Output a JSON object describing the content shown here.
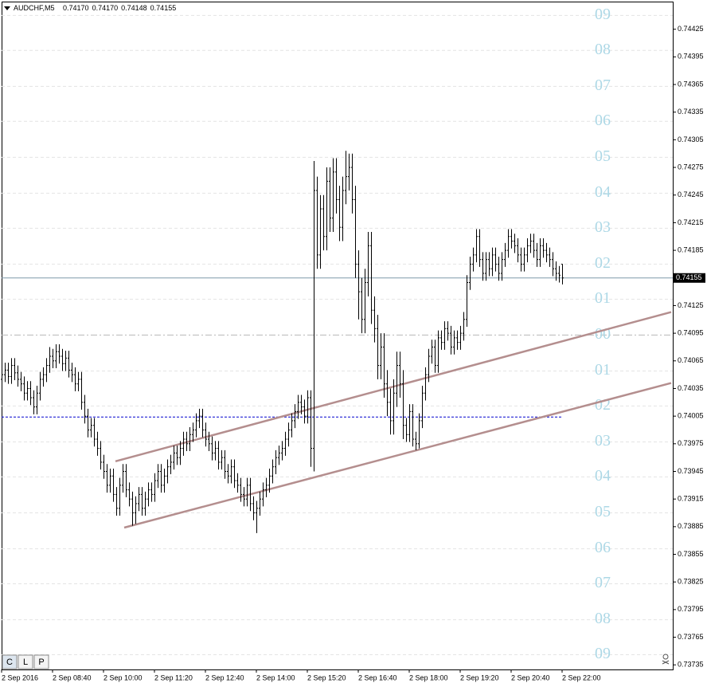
{
  "chart_data": {
    "type": "ohlc",
    "header_symbol": "AUDCHF,M5",
    "header_values": [
      "0.74170",
      "0.74170",
      "0.74148",
      "0.74155"
    ],
    "xlim": [
      0,
      210.75
    ],
    "ylim": [
      0.7373,
      0.74455
    ],
    "xticks": [
      {
        "value": 0,
        "label": "2 Sep 2016"
      },
      {
        "value": 16,
        "label": "2 Sep 08:40"
      },
      {
        "value": 32,
        "label": "2 Sep 10:00"
      },
      {
        "value": 48,
        "label": "2 Sep 11:20"
      },
      {
        "value": 64,
        "label": "2 Sep 12:40"
      },
      {
        "value": 80,
        "label": "2 Sep 14:00"
      },
      {
        "value": 96,
        "label": "2 Sep 15:20"
      },
      {
        "value": 112,
        "label": "2 Sep 16:40"
      },
      {
        "value": 128,
        "label": "2 Sep 18:00"
      },
      {
        "value": 144,
        "label": "2 Sep 19:20"
      },
      {
        "value": 160,
        "label": "2 Sep 20:40"
      },
      {
        "value": 176,
        "label": "2 Sep 22:00"
      }
    ],
    "yticks": [
      0.74425,
      0.74395,
      0.74365,
      0.74335,
      0.74305,
      0.74275,
      0.74245,
      0.74215,
      0.74185,
      0.74125,
      0.74095,
      0.74065,
      0.74035,
      0.74005,
      0.73975,
      0.73945,
      0.73915,
      0.73885,
      0.73855,
      0.73825,
      0.73795,
      0.73765,
      0.73735
    ],
    "bid": 0.74155,
    "bid_color": "#7f9aaa",
    "bar_color": "#000000",
    "hline": {
      "value": 0.74004,
      "x": [
        0,
        176
      ],
      "color": "#0000cd"
    },
    "trendlines": [
      {
        "x": [
          35.75,
          210.25
        ],
        "y": [
          0.73956,
          0.74118
        ]
      },
      {
        "x": [
          38.5,
          210.25
        ],
        "y": [
          0.73884,
          0.74041
        ]
      }
    ],
    "trend_color": "#b48e8e",
    "levels": [
      {
        "label": "09",
        "value": 0.7444
      },
      {
        "label": "08",
        "value": 0.74402
      },
      {
        "label": "07",
        "value": 0.74363
      },
      {
        "label": "06",
        "value": 0.74325
      },
      {
        "label": "05",
        "value": 0.74286
      },
      {
        "label": "04",
        "value": 0.74247
      },
      {
        "label": "03",
        "value": 0.74209
      },
      {
        "label": "02",
        "value": 0.7417
      },
      {
        "label": "01",
        "value": 0.74132
      },
      {
        "label": "00",
        "value": 0.74093
      },
      {
        "label": "01",
        "value": 0.74054
      },
      {
        "label": "02",
        "value": 0.74016
      },
      {
        "label": "03",
        "value": 0.73977
      },
      {
        "label": "04",
        "value": 0.73939
      },
      {
        "label": "05",
        "value": 0.739
      },
      {
        "label": "06",
        "value": 0.73861
      },
      {
        "label": "07",
        "value": 0.73823
      },
      {
        "label": "08",
        "value": 0.73784
      },
      {
        "label": "09",
        "value": 0.73746
      }
    ],
    "buttons": [
      "C",
      "L",
      "P"
    ],
    "open": [
      0.74045,
      0.7405,
      0.74055,
      0.74048,
      0.7406,
      0.74052,
      0.74045,
      0.7404,
      0.7403,
      0.74035,
      0.74025,
      0.74015,
      0.7403,
      0.74045,
      0.7405,
      0.7406,
      0.7407,
      0.74065,
      0.74075,
      0.7407,
      0.74062,
      0.74068,
      0.74055,
      0.7405,
      0.7404,
      0.74045,
      0.7402,
      0.74005,
      0.7399,
      0.73995,
      0.7398,
      0.7397,
      0.73955,
      0.73945,
      0.7393,
      0.7394,
      0.7392,
      0.73905,
      0.7393,
      0.73945,
      0.73925,
      0.73915,
      0.739,
      0.7391,
      0.7392,
      0.73905,
      0.73915,
      0.73925,
      0.7392,
      0.73935,
      0.73945,
      0.7393,
      0.7394,
      0.7395,
      0.73955,
      0.73965,
      0.7396,
      0.7397,
      0.7398,
      0.73975,
      0.73985,
      0.7399,
      0.74,
      0.74005,
      0.7399,
      0.7398,
      0.73975,
      0.73965,
      0.7397,
      0.73955,
      0.7396,
      0.73945,
      0.7394,
      0.7395,
      0.73935,
      0.7393,
      0.7392,
      0.73915,
      0.7393,
      0.7391,
      0.739,
      0.73905,
      0.73915,
      0.73925,
      0.7393,
      0.7394,
      0.7395,
      0.7396,
      0.73965,
      0.7397,
      0.7398,
      0.7399,
      0.74,
      0.7401,
      0.7402,
      0.74015,
      0.74005,
      0.74025,
      0.7397,
      0.7425,
      0.7418,
      0.7423,
      0.742,
      0.7426,
      0.7422,
      0.7427,
      0.7424,
      0.7421,
      0.7425,
      0.74265,
      0.74275,
      0.7424,
      0.7417,
      0.7414,
      0.7411,
      0.7415,
      0.7419,
      0.7412,
      0.741,
      0.7406,
      0.7408,
      0.7404,
      0.7402,
      0.74,
      0.7403,
      0.7406,
      0.7404,
      0.73995,
      0.73985,
      0.7401,
      0.7398,
      0.73975,
      0.74,
      0.7403,
      0.7405,
      0.7407,
      0.7408,
      0.7406,
      0.7409,
      0.74085,
      0.741,
      0.74095,
      0.7408,
      0.7409,
      0.74085,
      0.74095,
      0.7411,
      0.7415,
      0.7417,
      0.7418,
      0.742,
      0.74175,
      0.7416,
      0.74175,
      0.74165,
      0.7418,
      0.7417,
      0.7416,
      0.74175,
      0.74185,
      0.742,
      0.74195,
      0.7419,
      0.7418,
      0.7417,
      0.7418,
      0.7419,
      0.74195,
      0.74185,
      0.74175,
      0.7419,
      0.74185,
      0.7418,
      0.74175,
      0.74165,
      0.7416,
      0.7417
    ],
    "high": [
      0.74058,
      0.74063,
      0.74063,
      0.74068,
      0.74068,
      0.7406,
      0.74053,
      0.74048,
      0.74043,
      0.74043,
      0.74033,
      0.74038,
      0.74053,
      0.74058,
      0.74068,
      0.7408,
      0.74078,
      0.74083,
      0.74083,
      0.74078,
      0.74076,
      0.74076,
      0.74063,
      0.74058,
      0.74053,
      0.74053,
      0.74028,
      0.74013,
      0.74003,
      0.74003,
      0.73988,
      0.73978,
      0.73963,
      0.73953,
      0.73948,
      0.73948,
      0.73928,
      0.73938,
      0.73953,
      0.73953,
      0.73933,
      0.73923,
      0.73918,
      0.73928,
      0.73928,
      0.73923,
      0.73933,
      0.73933,
      0.73943,
      0.73953,
      0.73953,
      0.73948,
      0.73958,
      0.73963,
      0.73973,
      0.73973,
      0.73978,
      0.73988,
      0.73988,
      0.73993,
      0.73998,
      0.74008,
      0.74013,
      0.74013,
      0.73998,
      0.73988,
      0.73983,
      0.73978,
      0.73978,
      0.73968,
      0.73968,
      0.73953,
      0.73958,
      0.73958,
      0.73943,
      0.73938,
      0.73928,
      0.73938,
      0.73938,
      0.73918,
      0.73913,
      0.73923,
      0.73933,
      0.73938,
      0.73948,
      0.73958,
      0.73968,
      0.73973,
      0.73978,
      0.73988,
      0.73998,
      0.74008,
      0.74018,
      0.74028,
      0.74028,
      0.74023,
      0.74033,
      0.74033,
      0.74282,
      0.74265,
      0.74245,
      0.74245,
      0.74275,
      0.74275,
      0.74285,
      0.74285,
      0.74255,
      0.74265,
      0.74293,
      0.7429,
      0.7429,
      0.74255,
      0.74185,
      0.74155,
      0.74165,
      0.74205,
      0.74205,
      0.74135,
      0.74115,
      0.74095,
      0.74095,
      0.74055,
      0.74035,
      0.74045,
      0.74075,
      0.74075,
      0.74055,
      0.74003,
      0.74018,
      0.74018,
      0.73988,
      0.74008,
      0.74038,
      0.74058,
      0.74078,
      0.74088,
      0.74088,
      0.74098,
      0.74098,
      0.74108,
      0.74108,
      0.74103,
      0.74098,
      0.74098,
      0.74103,
      0.74118,
      0.74158,
      0.74178,
      0.74188,
      0.74208,
      0.74208,
      0.74183,
      0.74183,
      0.74183,
      0.74188,
      0.74188,
      0.74178,
      0.74183,
      0.74193,
      0.74208,
      0.74208,
      0.74203,
      0.74198,
      0.74188,
      0.74188,
      0.74198,
      0.74203,
      0.74203,
      0.74193,
      0.74198,
      0.74198,
      0.74193,
      0.74188,
      0.74183,
      0.74173,
      0.74168,
      0.7417
    ],
    "low": [
      0.74037,
      0.74042,
      0.7404,
      0.7404,
      0.74044,
      0.74037,
      0.74032,
      0.74022,
      0.74022,
      0.74017,
      0.74007,
      0.74007,
      0.74022,
      0.74037,
      0.74042,
      0.74052,
      0.74057,
      0.74057,
      0.74062,
      0.74054,
      0.74054,
      0.74047,
      0.74042,
      0.74032,
      0.74032,
      0.74012,
      0.73997,
      0.73982,
      0.73982,
      0.73972,
      0.73962,
      0.73947,
      0.73937,
      0.73922,
      0.73922,
      0.73912,
      0.73897,
      0.73897,
      0.73922,
      0.73917,
      0.73907,
      0.73886,
      0.73888,
      0.73902,
      0.73897,
      0.73897,
      0.73907,
      0.73912,
      0.73912,
      0.73927,
      0.73922,
      0.73922,
      0.73932,
      0.73942,
      0.73947,
      0.73952,
      0.73952,
      0.73962,
      0.73967,
      0.73967,
      0.73977,
      0.73982,
      0.73992,
      0.73982,
      0.73972,
      0.73967,
      0.73957,
      0.73957,
      0.73947,
      0.73947,
      0.73937,
      0.73932,
      0.73932,
      0.73927,
      0.73922,
      0.73912,
      0.73907,
      0.73907,
      0.73902,
      0.73892,
      0.73878,
      0.73897,
      0.73907,
      0.73917,
      0.73922,
      0.73932,
      0.73942,
      0.73952,
      0.73957,
      0.73962,
      0.73972,
      0.73982,
      0.73992,
      0.74002,
      0.74007,
      0.73997,
      0.73997,
      0.7395,
      0.73945,
      0.74165,
      0.74165,
      0.74185,
      0.74185,
      0.74205,
      0.74205,
      0.74225,
      0.74195,
      0.74195,
      0.74235,
      0.7425,
      0.74225,
      0.74155,
      0.7411,
      0.74095,
      0.74095,
      0.74135,
      0.74105,
      0.74085,
      0.74045,
      0.74045,
      0.74025,
      0.74005,
      0.73985,
      0.73985,
      0.74015,
      0.74025,
      0.7398,
      0.73977,
      0.73977,
      0.73972,
      0.73968,
      0.7397,
      0.73992,
      0.74022,
      0.74042,
      0.74062,
      0.74052,
      0.74052,
      0.74077,
      0.74077,
      0.74087,
      0.74072,
      0.74072,
      0.74077,
      0.74077,
      0.74087,
      0.74102,
      0.74142,
      0.74162,
      0.74172,
      0.74167,
      0.74152,
      0.74152,
      0.74157,
      0.74157,
      0.74162,
      0.74152,
      0.74152,
      0.74167,
      0.74177,
      0.74187,
      0.74182,
      0.74172,
      0.74162,
      0.74162,
      0.74172,
      0.74182,
      0.74177,
      0.74167,
      0.74167,
      0.74177,
      0.74172,
      0.74167,
      0.74157,
      0.74152,
      0.7415,
      0.74148
    ],
    "close": [
      0.7405,
      0.74055,
      0.74048,
      0.7406,
      0.74052,
      0.74045,
      0.7404,
      0.7403,
      0.74035,
      0.74025,
      0.74015,
      0.7403,
      0.74045,
      0.7405,
      0.7406,
      0.7407,
      0.74065,
      0.74075,
      0.7407,
      0.74062,
      0.74068,
      0.74055,
      0.7405,
      0.7404,
      0.74045,
      0.7402,
      0.74005,
      0.7399,
      0.73995,
      0.7398,
      0.7397,
      0.73955,
      0.73945,
      0.7393,
      0.7394,
      0.7392,
      0.73905,
      0.7393,
      0.73945,
      0.73925,
      0.73915,
      0.739,
      0.7391,
      0.7392,
      0.73905,
      0.73915,
      0.73925,
      0.7392,
      0.73935,
      0.73945,
      0.7393,
      0.7394,
      0.7395,
      0.73955,
      0.73965,
      0.7396,
      0.7397,
      0.7398,
      0.73975,
      0.73985,
      0.7399,
      0.74,
      0.74005,
      0.7399,
      0.7398,
      0.73975,
      0.73965,
      0.7397,
      0.73955,
      0.7396,
      0.73945,
      0.7394,
      0.7395,
      0.73935,
      0.7393,
      0.7392,
      0.73915,
      0.7393,
      0.7391,
      0.739,
      0.73905,
      0.73915,
      0.73925,
      0.7393,
      0.7394,
      0.7395,
      0.7396,
      0.73965,
      0.7397,
      0.7398,
      0.7399,
      0.74,
      0.7401,
      0.7402,
      0.74015,
      0.74005,
      0.74025,
      0.7397,
      0.7425,
      0.7418,
      0.7423,
      0.742,
      0.7426,
      0.7422,
      0.7427,
      0.7424,
      0.7421,
      0.7425,
      0.74265,
      0.74275,
      0.7424,
      0.7417,
      0.7414,
      0.7411,
      0.7415,
      0.7419,
      0.7412,
      0.741,
      0.7406,
      0.7408,
      0.7404,
      0.7402,
      0.74,
      0.7403,
      0.7406,
      0.7404,
      0.73995,
      0.73985,
      0.7401,
      0.7398,
      0.73975,
      0.74,
      0.7403,
      0.7405,
      0.7407,
      0.7408,
      0.7406,
      0.7409,
      0.74085,
      0.741,
      0.74095,
      0.7408,
      0.7409,
      0.74085,
      0.74095,
      0.7411,
      0.7415,
      0.7417,
      0.7418,
      0.742,
      0.74175,
      0.7416,
      0.74175,
      0.74165,
      0.7418,
      0.7417,
      0.7416,
      0.74175,
      0.74185,
      0.742,
      0.74195,
      0.7419,
      0.7418,
      0.7417,
      0.7418,
      0.7419,
      0.74195,
      0.74185,
      0.74175,
      0.7419,
      0.74185,
      0.7418,
      0.74175,
      0.74165,
      0.7416,
      0.74158,
      0.74155
    ]
  }
}
